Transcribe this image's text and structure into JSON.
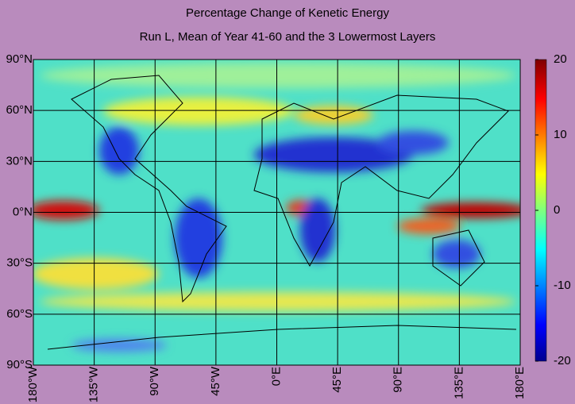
{
  "title": "Percentage Change of Kenetic Energy",
  "subtitle": "Run L, Mean of Year 41-60 and the 3 Lowermost Layers",
  "map": {
    "xlim": [
      -180,
      180
    ],
    "ylim": [
      -90,
      90
    ],
    "xticks": [
      {
        "value": -180,
        "label": "180°W"
      },
      {
        "value": -135,
        "label": "135°W"
      },
      {
        "value": -90,
        "label": "90°W"
      },
      {
        "value": -45,
        "label": "45°W"
      },
      {
        "value": 0,
        "label": "0°E"
      },
      {
        "value": 45,
        "label": "45°E"
      },
      {
        "value": 90,
        "label": "90°E"
      },
      {
        "value": 135,
        "label": "135°E"
      },
      {
        "value": 180,
        "label": "180°E"
      }
    ],
    "yticks": [
      {
        "value": 90,
        "label": "90°N"
      },
      {
        "value": 60,
        "label": "60°N"
      },
      {
        "value": 30,
        "label": "30°N"
      },
      {
        "value": 0,
        "label": "0°N"
      },
      {
        "value": -30,
        "label": "30°S"
      },
      {
        "value": -60,
        "label": "60°S"
      },
      {
        "value": -90,
        "label": "90°S"
      }
    ],
    "grid": true
  },
  "colorbar": {
    "lim": [
      -20,
      20
    ],
    "ticks": [
      20,
      10,
      0,
      -10,
      -20
    ]
  }
}
